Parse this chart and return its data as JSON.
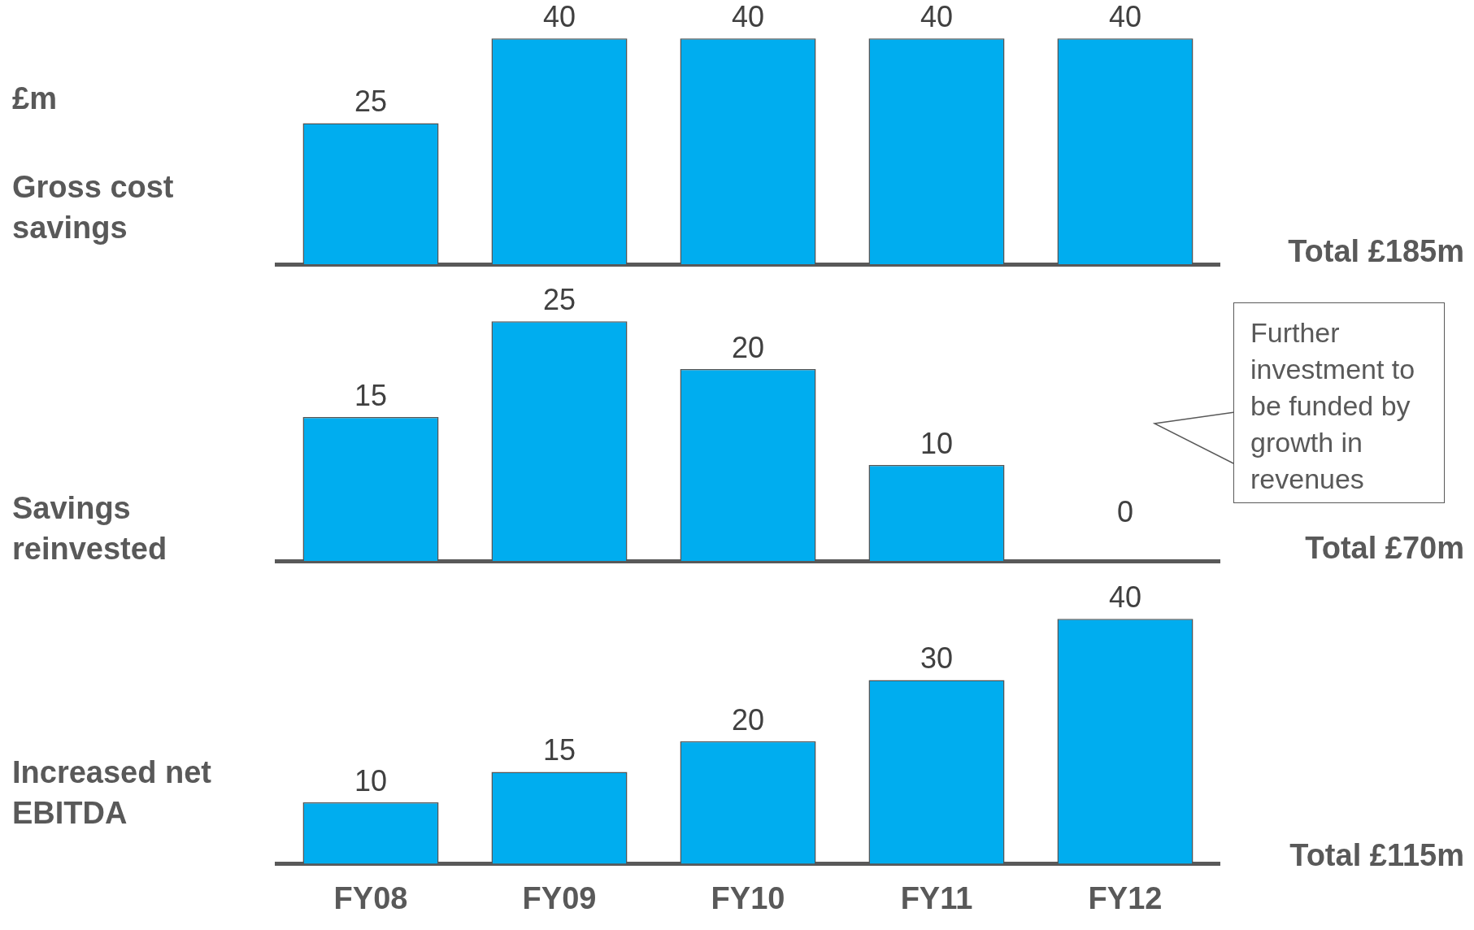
{
  "chart_data": [
    {
      "type": "bar",
      "ylabel": "£m",
      "title": "Gross cost savings",
      "values": [
        25,
        40,
        40,
        40,
        40
      ],
      "color": "#00adef",
      "data_labels": true,
      "tick_labels": false,
      "annotations": [
        "Total £185m"
      ]
    },
    {
      "type": "bar",
      "title": "Savings reinvested",
      "values": [
        15,
        25,
        20,
        10,
        0
      ],
      "color": "#00adef",
      "data_labels": true,
      "tick_labels": false,
      "annotations": [
        "Total £70m",
        "Further investment to be funded by growth in revenues"
      ]
    },
    {
      "type": "bar",
      "title": "Increased net EBITDA",
      "categories": [
        "FY08",
        "FY09",
        "FY10",
        "FY11",
        "FY12"
      ],
      "values": [
        10,
        15,
        20,
        30,
        40
      ],
      "color": "#00adef",
      "data_labels": true,
      "tick_labels": "x",
      "annotations": [
        "Total £115m"
      ]
    }
  ]
}
